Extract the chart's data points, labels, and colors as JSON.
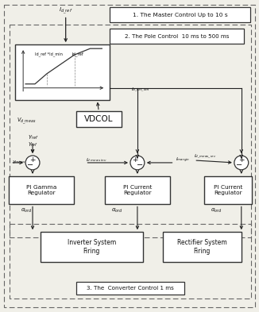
{
  "bg_color": "#f0efe8",
  "master_label": "1. The Master Control Up to 10 s",
  "pole_label": "2. The Pole Control  10 ms to 500 ms",
  "converter_label": "3. The  Converter Control 1 ms",
  "vdcol_label": "VDCOL",
  "pi_gamma_label": "PI Gamma\nRegulator",
  "pi_current_inv_label": "PI Current\nRegulator",
  "pi_current_rec_label": "PI Current\nRegulator",
  "inverter_firing_label": "Inverter System\nFiring",
  "rectifier_firing_label": "Rectifier System\nFiring",
  "lc": "#333333",
  "dc": "#666666"
}
